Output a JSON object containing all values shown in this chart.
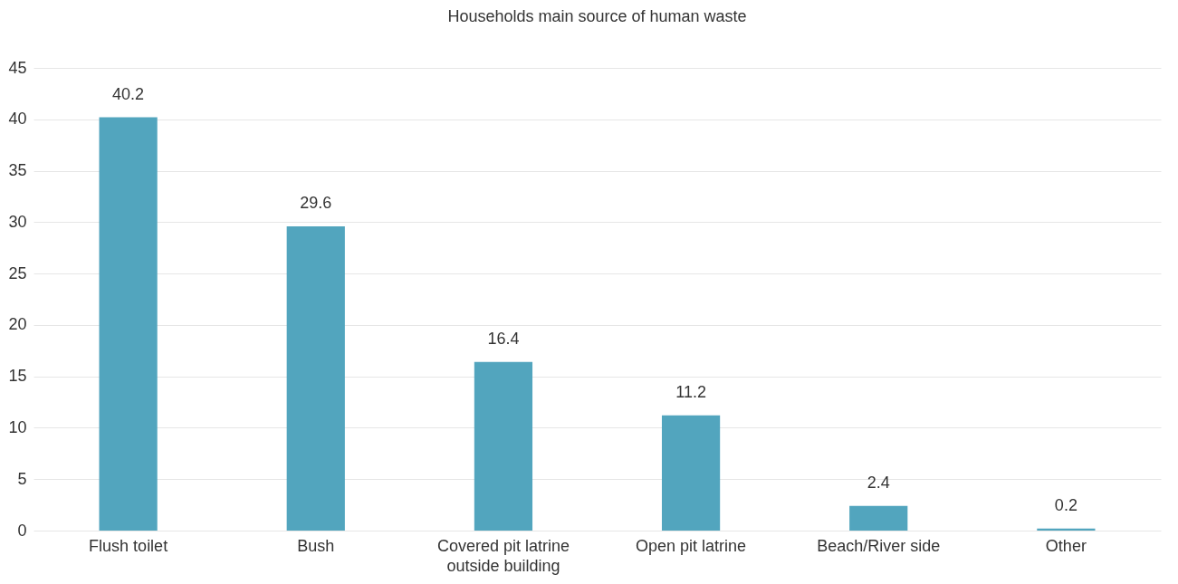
{
  "chart_data": {
    "type": "bar",
    "title": "Households main source of human waste",
    "categories": [
      "Flush toilet",
      "Bush",
      "Covered pit latrine outside building",
      "Open pit latrine",
      "Beach/River side",
      "Other"
    ],
    "values": [
      40.2,
      29.6,
      16.4,
      11.2,
      2.4,
      0.2
    ],
    "color": "#52a5be",
    "ylim": [
      0,
      45
    ],
    "yticks": [
      0,
      5,
      10,
      15,
      20,
      25,
      30,
      35,
      40,
      45
    ],
    "grid": "y",
    "data_labels": true
  }
}
